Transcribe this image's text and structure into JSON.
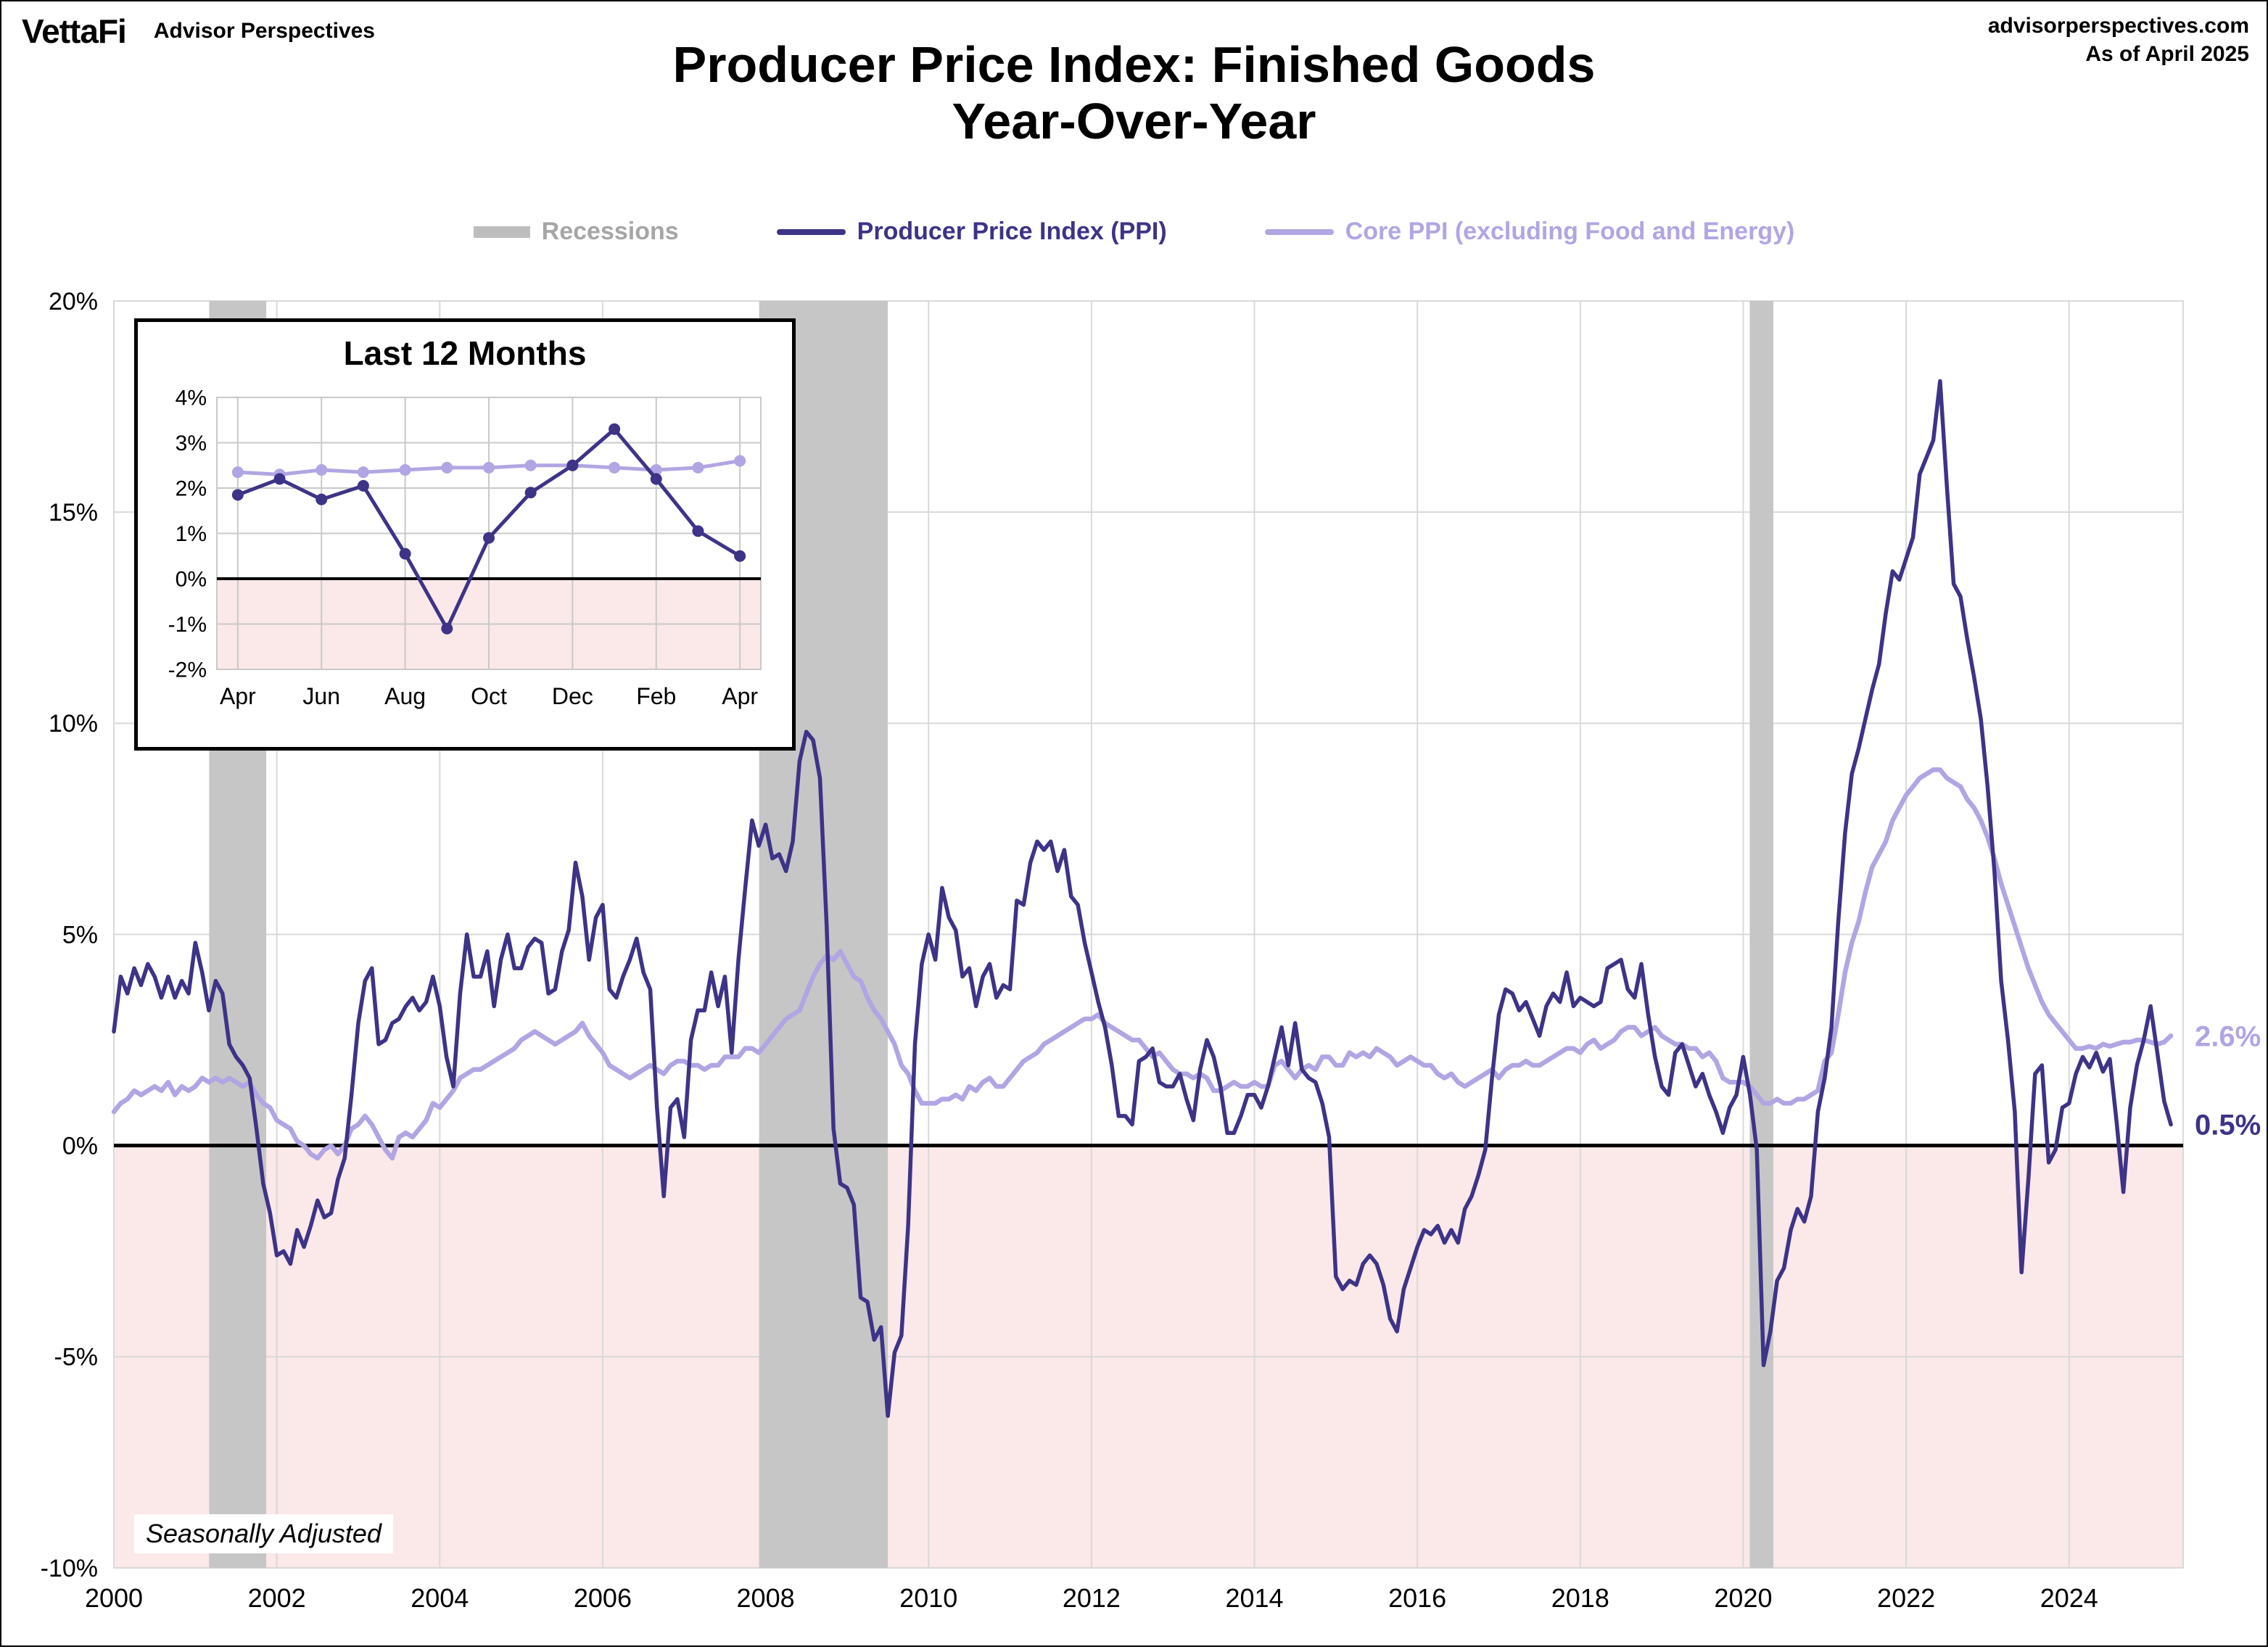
{
  "header": {
    "logo_text": "VettaFi",
    "logo_sub": "Advisor Perspectives",
    "site": "advisorperspectives.com",
    "as_of": "As of April 2025"
  },
  "title": {
    "line1": "Producer Price Index: Finished Goods",
    "line2": "Year-Over-Year"
  },
  "legend": [
    {
      "label": "Recessions",
      "color": "#bdbdbd",
      "text_color": "#a6a6a6",
      "type": "band"
    },
    {
      "label": "Producer Price Index (PPI)",
      "color": "#3d3387",
      "text_color": "#3d3387",
      "type": "line"
    },
    {
      "label": "Core PPI (excluding Food and Energy)",
      "color": "#b2a5e3",
      "text_color": "#b2a5e3",
      "type": "line"
    }
  ],
  "annotation": "Seasonally Adjusted",
  "chart_data": [
    {
      "type": "line",
      "name": "main",
      "title": "Producer Price Index: Finished Goods Year-Over-Year",
      "xlabel": "",
      "ylabel": "",
      "x_range": [
        2000,
        2025.4
      ],
      "y_range": [
        -10,
        20
      ],
      "x_ticks": [
        2000,
        2002,
        2004,
        2006,
        2008,
        2010,
        2012,
        2014,
        2016,
        2018,
        2020,
        2022,
        2024
      ],
      "y_ticks": [
        20,
        15,
        10,
        5,
        0,
        -5,
        -10
      ],
      "grid_color": "#d9d9d9",
      "negative_region_color": "#fbe8e8",
      "recession_color": "#c6c6c6",
      "recessions": [
        [
          2001.17,
          2001.87
        ],
        [
          2007.92,
          2009.5
        ],
        [
          2020.08,
          2020.37
        ]
      ],
      "series": [
        {
          "key": "core-ppi",
          "name": "Core PPI (excluding Food and Energy)",
          "color": "#b2a5e3",
          "stroke_width": 6.5,
          "x_start": 2000.0,
          "x_step_years": 0.083333,
          "end_label": "2.6%",
          "values": [
            0.8,
            1.0,
            1.1,
            1.3,
            1.2,
            1.3,
            1.4,
            1.3,
            1.5,
            1.2,
            1.4,
            1.3,
            1.4,
            1.6,
            1.5,
            1.6,
            1.5,
            1.6,
            1.5,
            1.4,
            1.5,
            1.2,
            1.0,
            0.9,
            0.6,
            0.5,
            0.4,
            0.1,
            0.0,
            -0.2,
            -0.3,
            -0.1,
            0.0,
            -0.2,
            0.0,
            0.4,
            0.5,
            0.7,
            0.5,
            0.2,
            -0.1,
            -0.3,
            0.2,
            0.3,
            0.2,
            0.4,
            0.6,
            1.0,
            0.9,
            1.1,
            1.3,
            1.6,
            1.7,
            1.8,
            1.8,
            1.9,
            2.0,
            2.1,
            2.2,
            2.3,
            2.5,
            2.6,
            2.7,
            2.6,
            2.5,
            2.4,
            2.5,
            2.6,
            2.7,
            2.9,
            2.6,
            2.4,
            2.2,
            1.9,
            1.8,
            1.7,
            1.6,
            1.7,
            1.8,
            1.9,
            1.8,
            1.7,
            1.9,
            2.0,
            2.0,
            1.9,
            1.9,
            1.8,
            1.9,
            1.9,
            2.1,
            2.1,
            2.1,
            2.3,
            2.3,
            2.2,
            2.4,
            2.6,
            2.8,
            3.0,
            3.1,
            3.2,
            3.6,
            4.0,
            4.3,
            4.5,
            4.4,
            4.6,
            4.3,
            4.0,
            3.9,
            3.5,
            3.2,
            3.0,
            2.7,
            2.4,
            1.9,
            1.7,
            1.3,
            1.0,
            1.0,
            1.0,
            1.1,
            1.1,
            1.2,
            1.1,
            1.4,
            1.3,
            1.5,
            1.6,
            1.4,
            1.4,
            1.6,
            1.8,
            2.0,
            2.1,
            2.2,
            2.4,
            2.5,
            2.6,
            2.7,
            2.8,
            2.9,
            3.0,
            3.0,
            3.1,
            2.9,
            2.8,
            2.7,
            2.6,
            2.5,
            2.5,
            2.3,
            2.1,
            2.2,
            2.0,
            1.8,
            1.7,
            1.7,
            1.6,
            1.7,
            1.6,
            1.3,
            1.3,
            1.4,
            1.5,
            1.4,
            1.4,
            1.5,
            1.4,
            1.4,
            1.9,
            2.0,
            1.8,
            1.6,
            1.8,
            1.9,
            1.8,
            2.1,
            2.1,
            1.9,
            1.9,
            2.2,
            2.1,
            2.2,
            2.1,
            2.3,
            2.2,
            2.1,
            1.9,
            2.0,
            2.1,
            2.0,
            1.9,
            1.9,
            1.7,
            1.6,
            1.7,
            1.5,
            1.4,
            1.5,
            1.6,
            1.7,
            1.8,
            1.6,
            1.8,
            1.9,
            1.9,
            2.0,
            1.9,
            1.9,
            2.0,
            2.1,
            2.2,
            2.3,
            2.3,
            2.2,
            2.4,
            2.5,
            2.3,
            2.4,
            2.5,
            2.7,
            2.8,
            2.8,
            2.6,
            2.7,
            2.8,
            2.6,
            2.5,
            2.4,
            2.4,
            2.3,
            2.3,
            2.1,
            2.2,
            2.0,
            1.6,
            1.5,
            1.5,
            1.5,
            1.4,
            1.2,
            1.0,
            1.0,
            1.1,
            1.0,
            1.0,
            1.1,
            1.1,
            1.2,
            1.3,
            2.0,
            2.2,
            3.1,
            4.1,
            4.8,
            5.3,
            6.0,
            6.6,
            6.9,
            7.2,
            7.7,
            8.0,
            8.3,
            8.5,
            8.7,
            8.8,
            8.9,
            8.9,
            8.7,
            8.6,
            8.5,
            8.2,
            8.0,
            7.7,
            7.3,
            6.8,
            6.2,
            5.7,
            5.2,
            4.7,
            4.2,
            3.8,
            3.4,
            3.1,
            2.9,
            2.7,
            2.5,
            2.3,
            2.3,
            2.35,
            2.3,
            2.4,
            2.35,
            2.4,
            2.45,
            2.45,
            2.5,
            2.5,
            2.45,
            2.4,
            2.45,
            2.6
          ]
        },
        {
          "key": "ppi",
          "name": "Producer Price Index (PPI)",
          "color": "#3d3387",
          "stroke_width": 5.5,
          "x_start": 2000.0,
          "x_step_years": 0.083333,
          "end_label": "0.5%",
          "values": [
            2.7,
            4.0,
            3.6,
            4.2,
            3.8,
            4.3,
            4.0,
            3.5,
            4.0,
            3.5,
            3.9,
            3.6,
            4.8,
            4.1,
            3.2,
            3.9,
            3.6,
            2.4,
            2.1,
            1.9,
            1.6,
            0.4,
            -0.9,
            -1.6,
            -2.6,
            -2.5,
            -2.8,
            -2.0,
            -2.4,
            -1.9,
            -1.3,
            -1.7,
            -1.6,
            -0.8,
            -0.3,
            1.2,
            2.9,
            3.9,
            4.2,
            2.4,
            2.5,
            2.9,
            3.0,
            3.3,
            3.5,
            3.2,
            3.4,
            4.0,
            3.3,
            2.1,
            1.4,
            3.6,
            5.0,
            4.0,
            4.0,
            4.6,
            3.3,
            4.4,
            5.0,
            4.2,
            4.2,
            4.7,
            4.9,
            4.8,
            3.6,
            3.7,
            4.6,
            5.1,
            6.7,
            5.9,
            4.4,
            5.4,
            5.7,
            3.7,
            3.5,
            4.0,
            4.4,
            4.9,
            4.1,
            3.7,
            0.9,
            -1.2,
            0.9,
            1.1,
            0.2,
            2.5,
            3.2,
            3.2,
            4.1,
            3.3,
            4.0,
            2.2,
            4.4,
            6.1,
            7.7,
            7.1,
            7.6,
            6.8,
            6.9,
            6.5,
            7.2,
            9.1,
            9.8,
            9.6,
            8.7,
            5.2,
            0.4,
            -0.9,
            -1.0,
            -1.4,
            -3.6,
            -3.7,
            -4.6,
            -4.3,
            -6.4,
            -4.9,
            -4.5,
            -1.9,
            2.4,
            4.3,
            5.0,
            4.4,
            6.1,
            5.4,
            5.1,
            4.0,
            4.2,
            3.3,
            4.0,
            4.3,
            3.5,
            3.8,
            3.7,
            5.8,
            5.7,
            6.7,
            7.2,
            7.0,
            7.2,
            6.5,
            7.0,
            5.9,
            5.7,
            4.8,
            4.1,
            3.4,
            2.8,
            1.9,
            0.7,
            0.7,
            0.5,
            2.0,
            2.1,
            2.3,
            1.5,
            1.4,
            1.4,
            1.7,
            1.1,
            0.6,
            1.8,
            2.5,
            2.1,
            1.4,
            0.3,
            0.3,
            0.7,
            1.2,
            1.2,
            0.9,
            1.4,
            2.1,
            2.8,
            1.9,
            2.9,
            1.8,
            1.6,
            1.5,
            1.0,
            0.2,
            -3.1,
            -3.4,
            -3.2,
            -3.3,
            -2.8,
            -2.6,
            -2.8,
            -3.3,
            -4.1,
            -4.4,
            -3.4,
            -2.9,
            -2.4,
            -2.0,
            -2.1,
            -1.9,
            -2.3,
            -2.0,
            -2.3,
            -1.5,
            -1.2,
            -0.7,
            -0.1,
            1.6,
            3.1,
            3.7,
            3.6,
            3.2,
            3.4,
            3.0,
            2.6,
            3.3,
            3.6,
            3.4,
            4.1,
            3.3,
            3.5,
            3.4,
            3.3,
            3.4,
            4.2,
            4.3,
            4.4,
            3.7,
            3.5,
            4.3,
            3.1,
            2.1,
            1.4,
            1.2,
            2.2,
            2.4,
            1.9,
            1.4,
            1.7,
            1.2,
            0.8,
            0.3,
            0.9,
            1.2,
            2.1,
            1.2,
            -0.1,
            -5.2,
            -4.4,
            -3.2,
            -2.9,
            -2.0,
            -1.5,
            -1.8,
            -1.2,
            0.8,
            1.6,
            2.8,
            5.3,
            7.4,
            8.8,
            9.4,
            10.1,
            10.8,
            11.4,
            12.6,
            13.6,
            13.4,
            13.9,
            14.4,
            15.9,
            16.3,
            16.7,
            18.1,
            15.6,
            13.3,
            13.0,
            12.0,
            11.1,
            10.1,
            8.5,
            6.5,
            3.9,
            2.5,
            0.8,
            -3.0,
            -0.8,
            1.7,
            1.9,
            -0.4,
            -0.1,
            0.9,
            1.0,
            1.7,
            2.1,
            1.85,
            2.2,
            1.75,
            2.05,
            0.55,
            -1.1,
            0.9,
            1.9,
            2.5,
            3.3,
            2.2,
            1.05,
            0.5
          ]
        }
      ]
    },
    {
      "type": "line",
      "name": "last-12-months",
      "title": "Last 12 Months",
      "x_labels": [
        "Apr",
        "Jun",
        "Aug",
        "Oct",
        "Dec",
        "Feb",
        "Apr"
      ],
      "x_range": [
        -0.5,
        12.5
      ],
      "y_range": [
        -2,
        4
      ],
      "y_ticks": [
        4,
        3,
        2,
        1,
        0,
        -1,
        -2
      ],
      "grid_color": "#c9c9c9",
      "negative_region_color": "#fbe8e8",
      "series": [
        {
          "key": "core-ppi",
          "name": "Core PPI (excluding Food and Energy)",
          "color": "#b2a5e3",
          "stroke_width": 5,
          "markers": true,
          "values": [
            2.35,
            2.3,
            2.4,
            2.35,
            2.4,
            2.45,
            2.45,
            2.5,
            2.5,
            2.45,
            2.4,
            2.45,
            2.6
          ]
        },
        {
          "key": "ppi",
          "name": "Producer Price Index (PPI)",
          "color": "#3d3387",
          "stroke_width": 5,
          "markers": true,
          "values": [
            1.85,
            2.2,
            1.75,
            2.05,
            0.55,
            -1.1,
            0.9,
            1.9,
            2.5,
            3.3,
            2.2,
            1.05,
            0.5
          ]
        }
      ]
    }
  ]
}
